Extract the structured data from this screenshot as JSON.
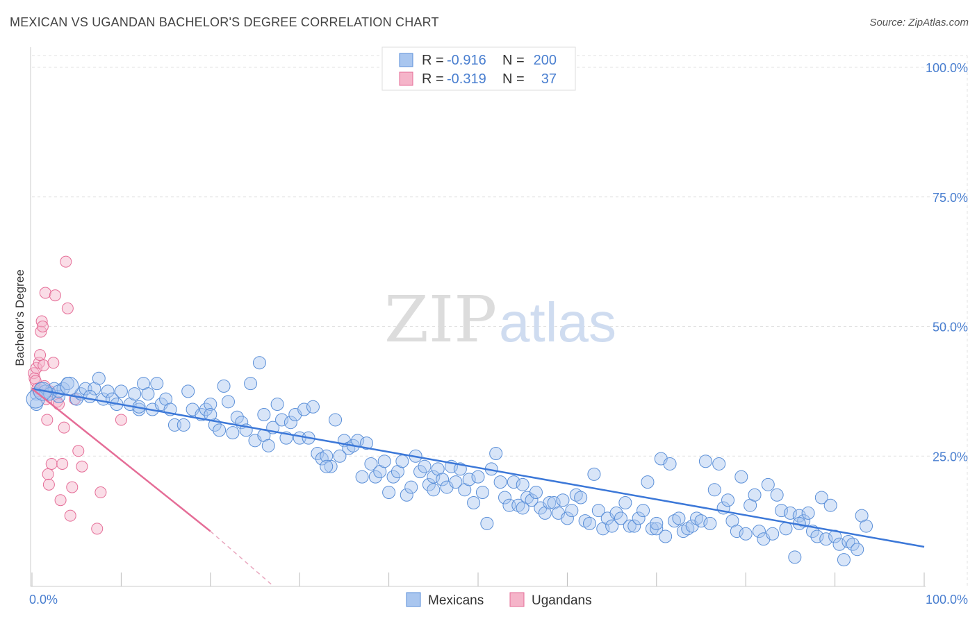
{
  "title": "MEXICAN VS UGANDAN BACHELOR'S DEGREE CORRELATION CHART",
  "source": "Source: ZipAtlas.com",
  "watermark": {
    "zip": "ZIP",
    "atlas": "atlas"
  },
  "colors": {
    "blue": "#5a8fd8",
    "blue_fill": "#a9c6ef",
    "pink": "#e56d97",
    "pink_fill": "#f5b4c9",
    "tick": "#4a7fd0"
  },
  "legend": {
    "rows": [
      {
        "r_label": "R =",
        "r_value": "-0.916",
        "n_label": "N =",
        "n_value": "200"
      },
      {
        "r_label": "R =",
        "r_value": "-0.319",
        "n_label": "N =",
        "n_value": "37"
      }
    ]
  },
  "chart_data": {
    "type": "scatter",
    "title": "MEXICAN VS UGANDAN BACHELOR'S DEGREE CORRELATION CHART",
    "xlabel": "",
    "ylabel": "Bachelor's Degree",
    "xlim": [
      0,
      100
    ],
    "ylim": [
      0,
      100
    ],
    "x_tick_labels": [
      "0.0%",
      "100.0%"
    ],
    "y_tick_labels": [
      "100.0%",
      "75.0%",
      "50.0%",
      "25.0%"
    ],
    "y_tick_values": [
      100,
      75,
      50,
      25
    ],
    "grid": true,
    "legend_position": "top-center",
    "series": [
      {
        "name": "Mexicans",
        "r": -0.916,
        "n": 200,
        "trend": {
          "x": [
            0,
            100
          ],
          "y": [
            38,
            7.5
          ]
        },
        "points": [
          [
            0.5,
            37
          ],
          [
            0.5,
            35
          ],
          [
            1,
            38
          ],
          [
            1.5,
            37.5
          ],
          [
            2,
            37
          ],
          [
            2.5,
            38
          ],
          [
            3,
            36.5
          ],
          [
            3.5,
            38
          ],
          [
            4,
            39
          ],
          [
            5,
            36
          ],
          [
            5.5,
            37
          ],
          [
            6,
            38
          ],
          [
            7,
            38
          ],
          [
            7.5,
            40
          ],
          [
            8,
            36
          ],
          [
            8.5,
            37.5
          ],
          [
            9,
            36
          ],
          [
            9.5,
            35
          ],
          [
            10,
            37.5
          ],
          [
            11,
            35
          ],
          [
            11.5,
            37
          ],
          [
            12,
            34
          ],
          [
            12.5,
            39
          ],
          [
            13,
            37
          ],
          [
            13.5,
            34
          ],
          [
            14,
            39
          ],
          [
            14.5,
            35
          ],
          [
            15,
            36
          ],
          [
            15.5,
            34
          ],
          [
            16,
            31
          ],
          [
            17,
            31
          ],
          [
            17.5,
            37.5
          ],
          [
            18,
            34
          ],
          [
            19,
            33
          ],
          [
            19.5,
            34
          ],
          [
            20,
            35
          ],
          [
            20.5,
            31
          ],
          [
            21,
            30
          ],
          [
            21.5,
            38.5
          ],
          [
            22,
            35.5
          ],
          [
            22.5,
            29.5
          ],
          [
            23,
            32.5
          ],
          [
            23.5,
            31.5
          ],
          [
            24,
            30
          ],
          [
            24.5,
            39
          ],
          [
            25,
            28
          ],
          [
            25.5,
            43
          ],
          [
            26,
            29
          ],
          [
            26.5,
            27
          ],
          [
            27,
            30.5
          ],
          [
            27.5,
            35
          ],
          [
            28,
            32
          ],
          [
            28.5,
            28.5
          ],
          [
            29,
            31.5
          ],
          [
            29.5,
            33
          ],
          [
            30,
            28.5
          ],
          [
            30.5,
            34
          ],
          [
            31,
            28.5
          ],
          [
            31.5,
            34.5
          ],
          [
            32,
            25.5
          ],
          [
            32.5,
            24.5
          ],
          [
            33,
            25
          ],
          [
            33.5,
            23
          ],
          [
            34,
            32
          ],
          [
            34.5,
            25
          ],
          [
            35,
            28
          ],
          [
            35.5,
            26.5
          ],
          [
            36,
            27
          ],
          [
            36.5,
            28
          ],
          [
            37,
            21
          ],
          [
            37.5,
            27.5
          ],
          [
            38,
            23.5
          ],
          [
            38.5,
            21
          ],
          [
            39,
            22
          ],
          [
            39.5,
            24
          ],
          [
            40,
            18
          ],
          [
            40.5,
            21
          ],
          [
            41,
            22
          ],
          [
            41.5,
            24
          ],
          [
            42,
            17.5
          ],
          [
            42.5,
            19
          ],
          [
            43,
            25
          ],
          [
            43.5,
            22
          ],
          [
            44,
            23
          ],
          [
            44.5,
            19.5
          ],
          [
            45,
            21
          ],
          [
            45.5,
            22.5
          ],
          [
            46,
            20.5
          ],
          [
            46.5,
            19
          ],
          [
            47,
            23
          ],
          [
            47.5,
            20
          ],
          [
            48,
            22.5
          ],
          [
            48.5,
            18.5
          ],
          [
            49,
            20.5
          ],
          [
            49.5,
            16
          ],
          [
            50,
            21
          ],
          [
            50.5,
            18
          ],
          [
            51,
            12
          ],
          [
            51.5,
            22.5
          ],
          [
            52,
            25.5
          ],
          [
            52.5,
            20
          ],
          [
            53,
            17
          ],
          [
            53.5,
            15.5
          ],
          [
            54,
            20
          ],
          [
            54.5,
            15.5
          ],
          [
            55,
            19.5
          ],
          [
            55.5,
            17
          ],
          [
            56,
            16.5
          ],
          [
            56.5,
            18
          ],
          [
            57,
            15
          ],
          [
            57.5,
            14
          ],
          [
            58,
            16
          ],
          [
            58.5,
            16
          ],
          [
            59,
            14
          ],
          [
            59.5,
            16.5
          ],
          [
            60,
            13
          ],
          [
            60.5,
            14.5
          ],
          [
            61,
            17.5
          ],
          [
            61.5,
            17
          ],
          [
            62,
            12.5
          ],
          [
            62.5,
            12
          ],
          [
            63,
            21.5
          ],
          [
            63.5,
            14.5
          ],
          [
            64,
            11
          ],
          [
            64.5,
            13
          ],
          [
            65,
            11.5
          ],
          [
            65.5,
            14
          ],
          [
            66,
            13
          ],
          [
            66.5,
            16
          ],
          [
            67,
            11.5
          ],
          [
            67.5,
            11.5
          ],
          [
            68,
            13
          ],
          [
            68.5,
            14.5
          ],
          [
            69,
            20
          ],
          [
            69.5,
            11
          ],
          [
            70,
            11
          ],
          [
            70.5,
            24.5
          ],
          [
            71,
            9.5
          ],
          [
            71.5,
            23.5
          ],
          [
            72,
            12.5
          ],
          [
            72.5,
            13
          ],
          [
            73,
            10.5
          ],
          [
            73.5,
            11
          ],
          [
            74,
            11.5
          ],
          [
            74.5,
            13
          ],
          [
            75,
            12.5
          ],
          [
            75.5,
            24
          ],
          [
            76,
            12
          ],
          [
            76.5,
            18.5
          ],
          [
            77,
            23.5
          ],
          [
            77.5,
            15
          ],
          [
            78,
            16.5
          ],
          [
            78.5,
            12.5
          ],
          [
            79,
            10.5
          ],
          [
            79.5,
            21
          ],
          [
            80,
            10
          ],
          [
            80.5,
            15.5
          ],
          [
            81,
            17.5
          ],
          [
            81.5,
            10.5
          ],
          [
            82,
            9
          ],
          [
            82.5,
            19.5
          ],
          [
            83,
            10
          ],
          [
            83.5,
            17.5
          ],
          [
            84,
            14.5
          ],
          [
            84.5,
            11
          ],
          [
            85,
            14
          ],
          [
            85.5,
            5.5
          ],
          [
            86,
            13.5
          ],
          [
            86.5,
            12.5
          ],
          [
            87,
            14
          ],
          [
            87.5,
            10.5
          ],
          [
            88,
            9.5
          ],
          [
            88.5,
            17
          ],
          [
            89,
            9
          ],
          [
            89.5,
            15.5
          ],
          [
            90,
            9.5
          ],
          [
            90.5,
            8
          ],
          [
            91,
            5
          ],
          [
            91.5,
            8.5
          ],
          [
            92,
            8
          ],
          [
            92.5,
            7
          ],
          [
            93,
            13.5
          ],
          [
            93.5,
            11.5
          ],
          [
            2,
            37
          ],
          [
            3,
            37.5
          ],
          [
            6.5,
            36.5
          ],
          [
            12,
            34.5
          ],
          [
            20,
            33
          ],
          [
            26,
            33
          ],
          [
            33,
            23
          ],
          [
            45,
            18.5
          ],
          [
            55,
            15
          ],
          [
            70,
            12
          ],
          [
            86,
            12
          ]
        ]
      },
      {
        "name": "Ugandans",
        "r": -0.319,
        "n": 37,
        "trend": {
          "x": [
            0,
            20
          ],
          "y": [
            38,
            10.5
          ]
        },
        "trend_dashed": {
          "x": [
            20,
            27
          ],
          "y": [
            10.5,
            0
          ]
        },
        "points": [
          [
            0.2,
            41
          ],
          [
            0.3,
            40
          ],
          [
            0.4,
            39.5
          ],
          [
            0.5,
            42
          ],
          [
            0.6,
            38
          ],
          [
            0.7,
            37.5
          ],
          [
            0.8,
            43
          ],
          [
            0.9,
            44.5
          ],
          [
            1,
            49
          ],
          [
            1.1,
            51
          ],
          [
            1.2,
            50
          ],
          [
            1.3,
            42.5
          ],
          [
            1.4,
            38.5
          ],
          [
            1.5,
            56.5
          ],
          [
            1.6,
            36
          ],
          [
            1.7,
            32
          ],
          [
            1.8,
            21.5
          ],
          [
            1.9,
            19.5
          ],
          [
            2,
            37.5
          ],
          [
            2.2,
            23.5
          ],
          [
            2.4,
            43
          ],
          [
            2.6,
            56
          ],
          [
            2.8,
            35.5
          ],
          [
            3,
            35
          ],
          [
            3.2,
            16.5
          ],
          [
            3.4,
            23.5
          ],
          [
            3.6,
            30.5
          ],
          [
            3.8,
            62.5
          ],
          [
            4,
            53.5
          ],
          [
            4.3,
            13.5
          ],
          [
            4.5,
            19
          ],
          [
            4.8,
            36
          ],
          [
            5.2,
            26
          ],
          [
            5.6,
            23
          ],
          [
            7.3,
            11
          ],
          [
            7.7,
            18
          ],
          [
            10,
            32
          ]
        ]
      }
    ]
  },
  "bottom_legend": [
    {
      "label": "Mexicans"
    },
    {
      "label": "Ugandans"
    }
  ]
}
